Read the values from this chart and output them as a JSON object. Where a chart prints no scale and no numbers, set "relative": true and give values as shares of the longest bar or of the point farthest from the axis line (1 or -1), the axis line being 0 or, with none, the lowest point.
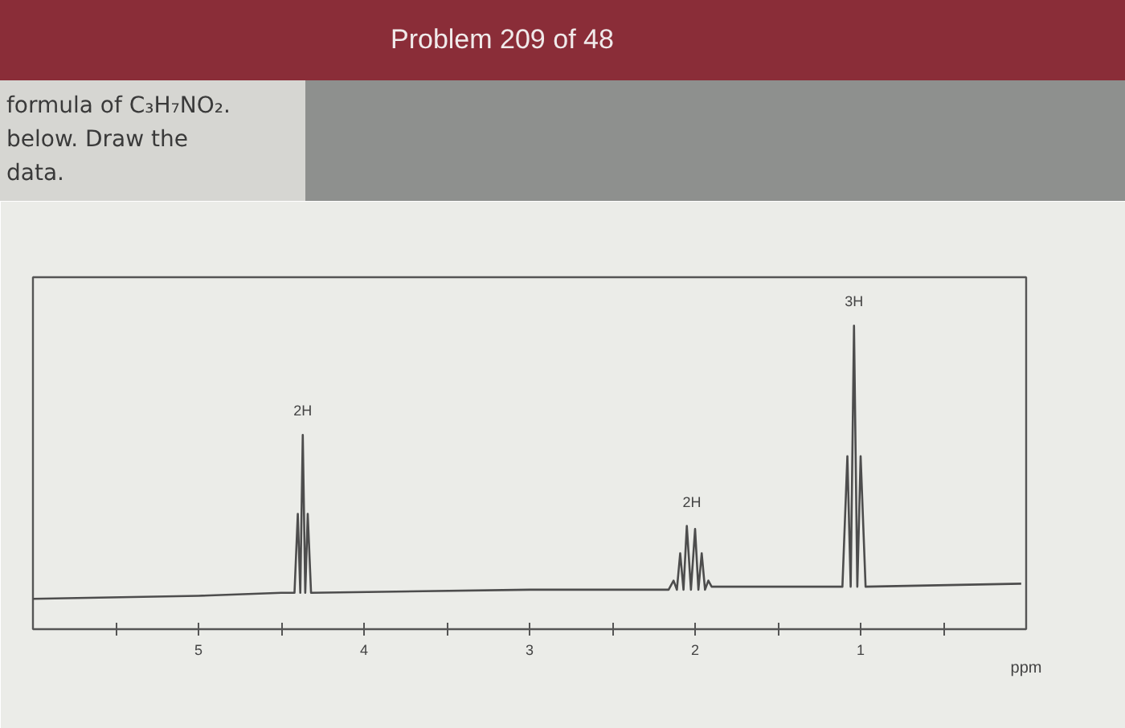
{
  "chart_data": {
    "type": "line",
    "title": "Problem 209 of 48",
    "xlabel": "ppm",
    "relative": true,
    "color": "#4d4d4d",
    "marker": "none",
    "line_style": "solid",
    "grid": false,
    "tick_labels": "x",
    "xlim": [
      6,
      0
    ],
    "xticks": [
      {
        "value": 5.5,
        "label": null
      },
      5,
      {
        "value": 4.5,
        "label": null
      },
      4,
      {
        "value": 3.5,
        "label": null
      },
      3,
      {
        "value": 2.5,
        "label": null
      },
      2,
      {
        "value": 1.5,
        "label": null
      },
      1,
      {
        "value": 0.5,
        "label": null
      }
    ],
    "x": [
      6.0,
      5.0,
      4.5,
      4.42,
      4.4,
      4.385,
      4.37,
      4.355,
      4.34,
      4.32,
      3.0,
      2.16,
      2.13,
      2.11,
      2.09,
      2.07,
      2.05,
      2.025,
      2.0,
      1.98,
      1.96,
      1.94,
      1.92,
      1.9,
      1.11,
      1.08,
      1.06,
      1.04,
      1.02,
      1.0,
      0.97,
      0.03
    ],
    "values": [
      0.1,
      0.11,
      0.12,
      0.12,
      0.38,
      0.12,
      0.64,
      0.12,
      0.38,
      0.12,
      0.13,
      0.13,
      0.16,
      0.13,
      0.25,
      0.13,
      0.34,
      0.13,
      0.33,
      0.13,
      0.25,
      0.13,
      0.16,
      0.14,
      0.14,
      0.57,
      0.14,
      1.0,
      0.14,
      0.57,
      0.14,
      0.15
    ],
    "annotations": [
      {
        "text": "2H",
        "x": 4.37,
        "y": 0.64
      },
      {
        "text": "2H",
        "x": 2.02,
        "y": 0.34
      },
      {
        "text": "3H",
        "x": 1.04,
        "y": 1.0
      },
      "formula of C₃H₇NO₂. below. Draw the data."
    ]
  }
}
